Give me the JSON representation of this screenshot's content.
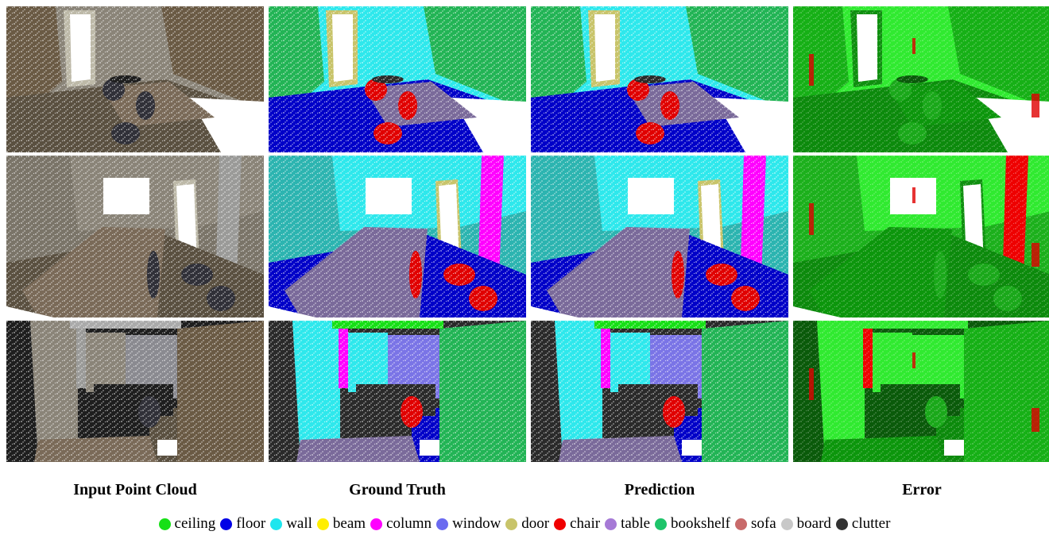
{
  "columns": [
    "Input Point Cloud",
    "Ground Truth",
    "Prediction",
    "Error"
  ],
  "legend": [
    {
      "label": "ceiling",
      "color": "#16e016"
    },
    {
      "label": "floor",
      "color": "#0000e6"
    },
    {
      "label": "wall",
      "color": "#1ee6ee"
    },
    {
      "label": "beam",
      "color": "#ffee00"
    },
    {
      "label": "column",
      "color": "#ff00ff"
    },
    {
      "label": "window",
      "color": "#6a6af0"
    },
    {
      "label": "door",
      "color": "#c8c46a"
    },
    {
      "label": "chair",
      "color": "#f00000"
    },
    {
      "label": "table",
      "color": "#a67ad6"
    },
    {
      "label": "bookshelf",
      "color": "#1ec46a"
    },
    {
      "label": "sofa",
      "color": "#c86a6a"
    },
    {
      "label": "board",
      "color": "#c8c8c8"
    },
    {
      "label": "clutter",
      "color": "#323232"
    }
  ]
}
